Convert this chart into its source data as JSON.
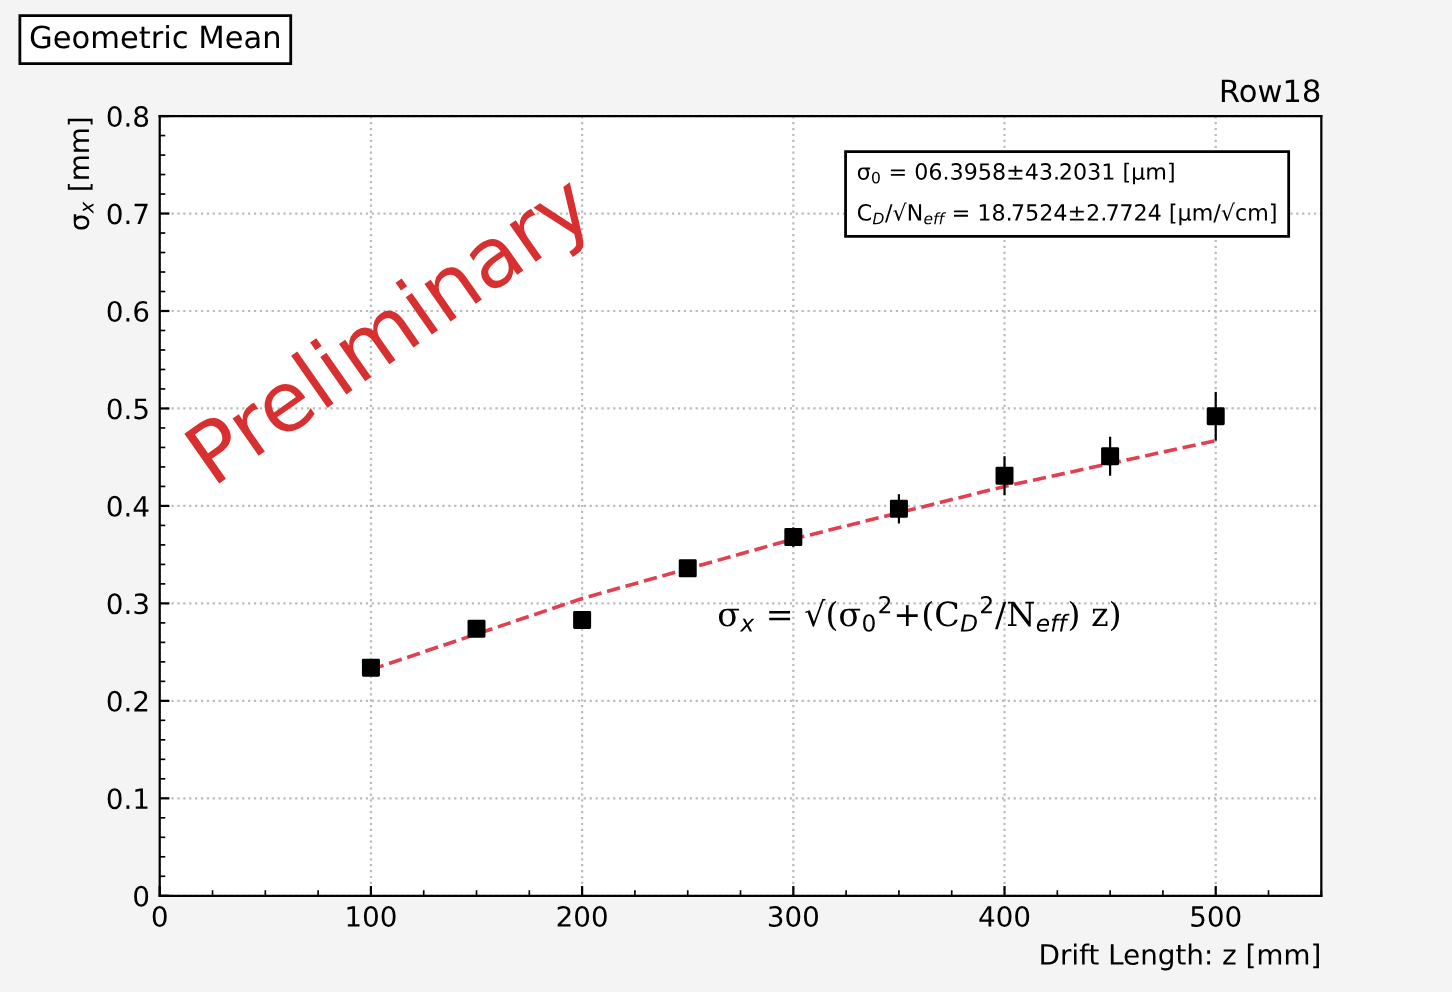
{
  "chart_data": {
    "type": "scatter",
    "title": "Geometric Mean",
    "subtitle": "Row18",
    "xlabel": "Drift Length: z [mm]",
    "ylabel": "σ$_{x}$ [mm]",
    "series": [
      {
        "color": "#000000",
        "marker": "square",
        "x": [
          100,
          150,
          200,
          250,
          300,
          350,
          400,
          450,
          500
        ],
        "values": [
          0.234,
          0.274,
          0.283,
          0.336,
          0.368,
          0.397,
          0.431,
          0.451,
          0.492
        ],
        "errors": [
          0.005,
          0.005,
          0.005,
          0.008,
          0.01,
          0.015,
          0.02,
          0.02,
          0.025
        ]
      },
      {
        "type": "line",
        "color": "#e04050",
        "line_style": "dashed",
        "marker": "none",
        "x": [
          100,
          200,
          300,
          400,
          500
        ],
        "values": [
          0.232,
          0.305,
          0.366,
          0.42,
          0.467
        ]
      }
    ],
    "annotations": [
      "σ$_{0}$ = 06.3958±43.2031 [μm]",
      "C$_{D}$/√N$_{eff}$ = 18.7524±2.7724 [μm/√cm]",
      "Preliminary",
      "σ$_{x}$ = √(σ$_{0}$$^{2}$+(C$_{D}$$^{2}$/N$_{eff}$) z)"
    ],
    "xlim": [
      0,
      550
    ],
    "xticks": [
      0,
      100,
      200,
      300,
      400,
      500
    ],
    "ylim": [
      0,
      0.8
    ],
    "yticks": [
      0,
      0.1,
      0.2,
      0.3,
      0.4,
      0.5,
      0.6,
      0.7,
      0.8
    ],
    "grid": true
  }
}
